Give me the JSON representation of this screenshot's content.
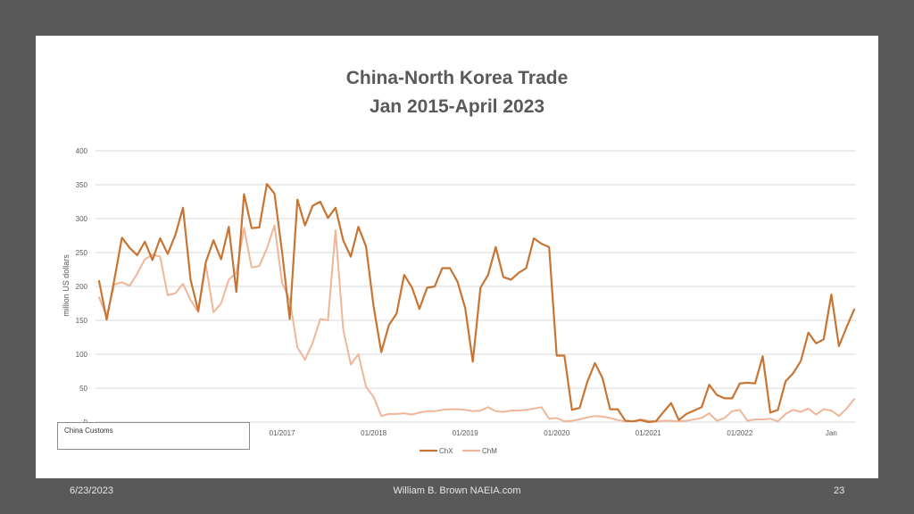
{
  "footer": {
    "date": "6/23/2023",
    "author": "William B. Brown  NAEIA.com",
    "page": "23"
  },
  "source_note": "China Customs",
  "colors": {
    "background": "#595959",
    "panel": "#ffffff",
    "chx": "#C87533",
    "chm": "#F0B699",
    "grid": "#d9d9d9"
  },
  "chart_data": {
    "type": "line",
    "title": "China-North Korea Trade",
    "subtitle": "Jan 2015-April 2023",
    "ylabel": "million US dollars",
    "xlabel": "",
    "ylim": [
      0,
      400
    ],
    "yticks": [
      0,
      50,
      100,
      150,
      200,
      250,
      300,
      350,
      400
    ],
    "grid": true,
    "legend_position": "bottom",
    "x_start": "2015-01",
    "x_tick_labels": [
      {
        "month": "2017-01",
        "label": "01/2017"
      },
      {
        "month": "2018-01",
        "label": "01/2018"
      },
      {
        "month": "2019-01",
        "label": "01/2019"
      },
      {
        "month": "2020-01",
        "label": "01/2020"
      },
      {
        "month": "2021-01",
        "label": "01/2021"
      },
      {
        "month": "2022-01",
        "label": "01/2022"
      },
      {
        "month": "2023-01",
        "label": "Jan"
      }
    ],
    "series": [
      {
        "name": "ChX",
        "color": "#C87533",
        "values": [
          208,
          151,
          210,
          272,
          257,
          246,
          266,
          239,
          271,
          248,
          276,
          316,
          210,
          164,
          236,
          268,
          240,
          288,
          192,
          336,
          286,
          287,
          351,
          337,
          250,
          152,
          328,
          290,
          319,
          325,
          301,
          316,
          268,
          244,
          288,
          259,
          170,
          103,
          143,
          160,
          217,
          199,
          167,
          198,
          200,
          227,
          227,
          207,
          168,
          89,
          198,
          217,
          258,
          214,
          210,
          220,
          227,
          271,
          263,
          258,
          98,
          98,
          18,
          21,
          59,
          87,
          65,
          19,
          19,
          2,
          1,
          3,
          0,
          1,
          15,
          28,
          3,
          12,
          17,
          22,
          55,
          40,
          35,
          35,
          57,
          58,
          57,
          97,
          14,
          18,
          60,
          72,
          90,
          132,
          116,
          122,
          188,
          112,
          140,
          166
        ]
      },
      {
        "name": "ChM",
        "color": "#F0B699",
        "values": [
          184,
          156,
          203,
          206,
          201,
          219,
          240,
          247,
          244,
          187,
          190,
          204,
          180,
          162,
          232,
          162,
          175,
          210,
          220,
          286,
          228,
          230,
          256,
          290,
          205,
          180,
          110,
          92,
          117,
          152,
          150,
          283,
          137,
          85,
          100,
          52,
          37,
          9,
          12,
          12,
          13,
          11,
          14,
          16,
          16,
          18,
          19,
          19,
          18,
          16,
          17,
          22,
          16,
          15,
          17,
          17,
          18,
          20,
          22,
          5,
          6,
          1,
          2,
          4,
          7,
          9,
          8,
          6,
          3,
          1,
          1,
          4,
          2,
          1,
          2,
          2,
          1,
          2,
          4,
          6,
          13,
          2,
          6,
          16,
          18,
          2,
          4,
          4,
          5,
          1,
          12,
          18,
          15,
          20,
          11,
          19,
          17,
          9,
          20,
          34
        ]
      }
    ]
  }
}
